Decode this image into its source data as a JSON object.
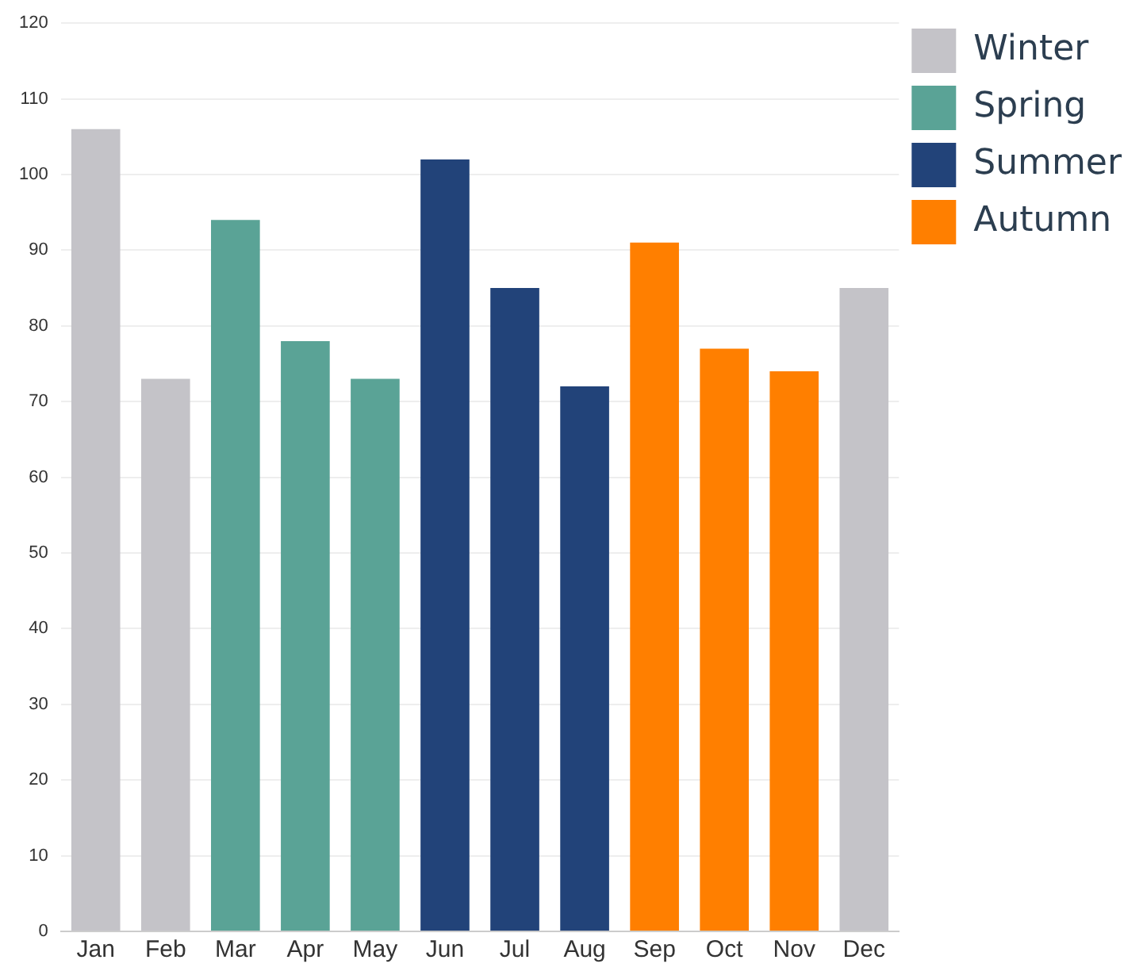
{
  "chart_data": {
    "type": "bar",
    "categories": [
      "Jan",
      "Feb",
      "Mar",
      "Apr",
      "May",
      "Jun",
      "Jul",
      "Aug",
      "Sep",
      "Oct",
      "Nov",
      "Dec"
    ],
    "series": [
      {
        "name": "Winter",
        "color": "#c4c3c8",
        "values": [
          106,
          73,
          null,
          null,
          null,
          null,
          null,
          null,
          null,
          null,
          null,
          85
        ]
      },
      {
        "name": "Spring",
        "color": "#5aa396",
        "values": [
          null,
          null,
          94,
          78,
          73,
          null,
          null,
          null,
          null,
          null,
          null,
          null
        ]
      },
      {
        "name": "Summer",
        "color": "#224379",
        "values": [
          null,
          null,
          null,
          null,
          null,
          102,
          85,
          72,
          null,
          null,
          null,
          null
        ]
      },
      {
        "name": "Autumn",
        "color": "#ff7f00",
        "values": [
          null,
          null,
          null,
          null,
          null,
          null,
          null,
          null,
          91,
          77,
          74,
          null
        ]
      }
    ],
    "ylim": [
      0,
      120
    ],
    "yticks": [
      0,
      10,
      20,
      30,
      40,
      50,
      60,
      70,
      80,
      90,
      100,
      110,
      120
    ],
    "grid": "y",
    "legend": "top right"
  }
}
